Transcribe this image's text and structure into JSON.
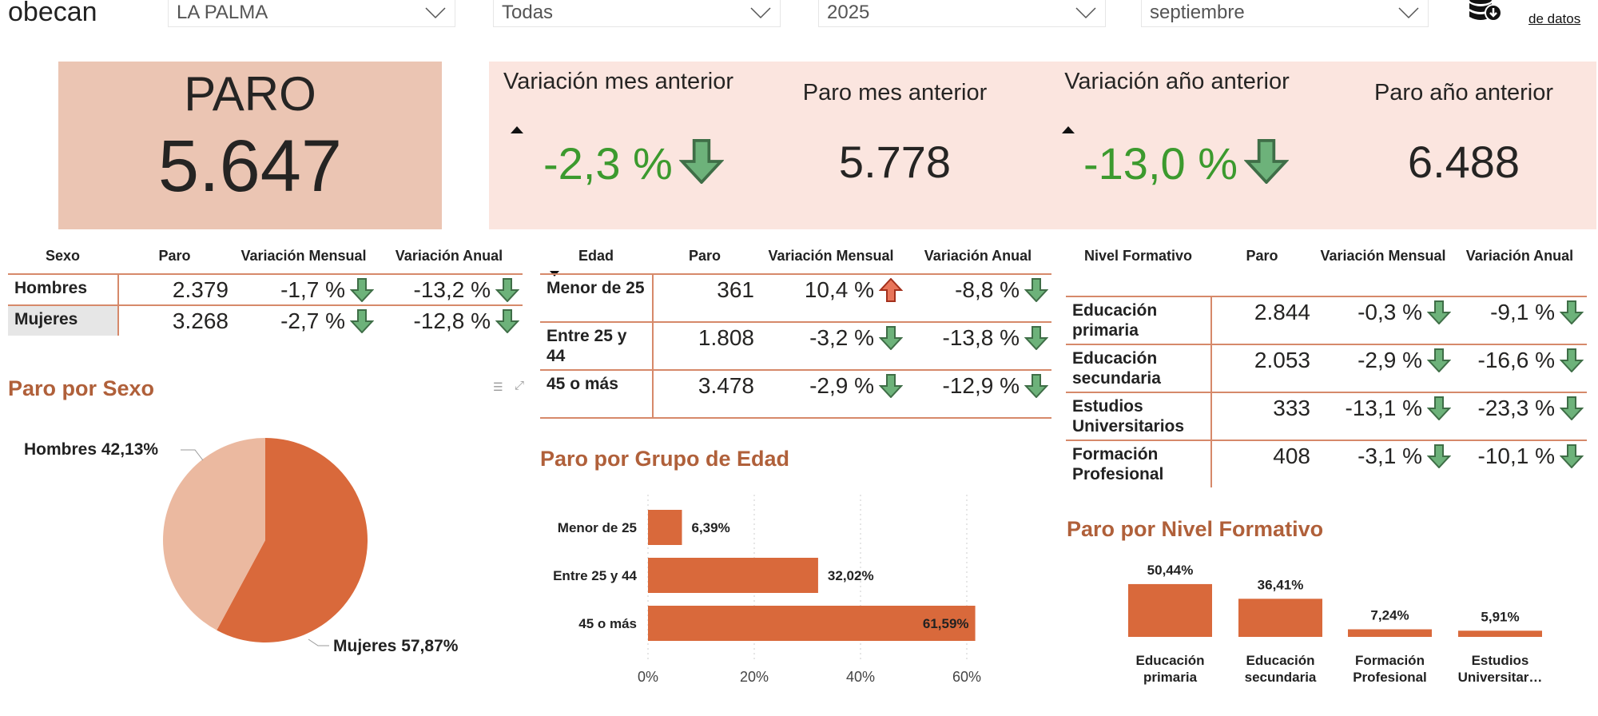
{
  "header": {
    "logo": "obecan",
    "filters": [
      "LA PALMA",
      "Todas",
      "2025",
      "septiembre"
    ],
    "download_label": "de datos",
    "download_icon": "database-download-icon"
  },
  "kpi": {
    "paro_label": "PARO",
    "paro_value": "5.647",
    "var_mes_label": "Variación mes anterior",
    "var_mes_value": "-2,3 %",
    "paro_mes_label": "Paro mes anterior",
    "paro_mes_value": "5.778",
    "var_anio_label": "Variación año anterior",
    "var_anio_value": "-13,0 %",
    "paro_anio_label": "Paro año anterior",
    "paro_anio_value": "6.488"
  },
  "colors": {
    "accent": "#d9693b",
    "light": "#ebb9a0",
    "title": "#b0603a",
    "green": "#3c9a2e",
    "kpi_box": "#ebc5b3",
    "panel": "#fbe5df"
  },
  "sexo_table": {
    "headers": [
      "Sexo",
      "Paro",
      "Variación Mensual",
      "Variación Anual"
    ],
    "rows": [
      {
        "label": "Hombres",
        "paro": "2.379",
        "mensual": "-1,7 %",
        "anual": "-13,2 %",
        "m_dir": "down",
        "a_dir": "down"
      },
      {
        "label": "Mujeres",
        "paro": "3.268",
        "mensual": "-2,7 %",
        "anual": "-12,8 %",
        "m_dir": "down",
        "a_dir": "down"
      }
    ]
  },
  "edad_table": {
    "headers": [
      "Edad",
      "Paro",
      "Variación Mensual",
      "Variación Anual"
    ],
    "rows": [
      {
        "label": "Menor de 25",
        "paro": "361",
        "mensual": "10,4 %",
        "anual": "-8,8 %",
        "m_dir": "up",
        "a_dir": "down"
      },
      {
        "label": "Entre 25 y 44",
        "paro": "1.808",
        "mensual": "-3,2 %",
        "anual": "-13,8 %",
        "m_dir": "down",
        "a_dir": "down"
      },
      {
        "label": "45 o más",
        "paro": "3.478",
        "mensual": "-2,9 %",
        "anual": "-12,9 %",
        "m_dir": "down",
        "a_dir": "down"
      }
    ]
  },
  "nivel_table": {
    "headers": [
      "Nivel Formativo",
      "Paro",
      "Variación Mensual",
      "Variación Anual"
    ],
    "rows": [
      {
        "label": "Educación primaria",
        "paro": "2.844",
        "mensual": "-0,3 %",
        "anual": "-9,1 %",
        "m_dir": "down",
        "a_dir": "down"
      },
      {
        "label": "Educación secundaria",
        "paro": "2.053",
        "mensual": "-2,9 %",
        "anual": "-16,6 %",
        "m_dir": "down",
        "a_dir": "down"
      },
      {
        "label": "Estudios Universitarios",
        "paro": "333",
        "mensual": "-13,1 %",
        "anual": "-23,3 %",
        "m_dir": "down",
        "a_dir": "down"
      },
      {
        "label": "Formación Profesional",
        "paro": "408",
        "mensual": "-3,1 %",
        "anual": "-10,1 %",
        "m_dir": "down",
        "a_dir": "down"
      }
    ]
  },
  "chart_data": [
    {
      "type": "pie",
      "title": "Paro por Sexo",
      "categories": [
        "Hombres",
        "Mujeres"
      ],
      "values": [
        42.13,
        57.87
      ],
      "labels": [
        "Hombres 42,13%",
        "Mujeres 57,87%"
      ]
    },
    {
      "type": "bar",
      "orientation": "horizontal",
      "title": "Paro por Grupo de Edad",
      "categories": [
        "Menor de 25",
        "Entre 25 y 44",
        "45 o más"
      ],
      "values": [
        6.39,
        32.02,
        61.59
      ],
      "labels": [
        "6,39%",
        "32,02%",
        "61,59%"
      ],
      "xlim": [
        0,
        60
      ],
      "xticks": [
        "0%",
        "20%",
        "40%",
        "60%"
      ],
      "grid": true
    },
    {
      "type": "bar",
      "title": "Paro por Nivel Formativo",
      "categories": [
        "Educación primaria",
        "Educación secundaria",
        "Formación Profesional",
        "Estudios Universitar…"
      ],
      "values": [
        50.44,
        36.41,
        7.24,
        5.91
      ],
      "labels": [
        "50,44%",
        "36,41%",
        "7,24%",
        "5,91%"
      ]
    }
  ]
}
